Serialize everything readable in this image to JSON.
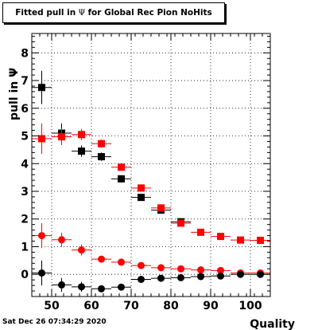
{
  "title": {
    "prefix": "Fitted pull in",
    "symbol": "Ψ",
    "suffix": "for Global Rec Pion NoHits"
  },
  "footer": {
    "timestamp": "Sat Dec 26 07:34:29 2020"
  },
  "colors": {
    "series_a": "#000000",
    "series_b": "#ff0000",
    "grid": "#000000"
  },
  "chart_data": {
    "type": "scatter",
    "title": "Fitted pull in Ψ for Global Rec Pion NoHits",
    "xlabel": "Quality",
    "ylabel": "pull in Ψ",
    "xlim": [
      45,
      105
    ],
    "ylim": [
      -0.8,
      8.7
    ],
    "xticks": [
      50,
      60,
      70,
      80,
      90,
      100
    ],
    "xtick_labels": [
      "50",
      "60",
      "70",
      "80",
      "90",
      "100"
    ],
    "yticks": [
      0,
      1,
      2,
      3,
      4,
      5,
      6,
      7,
      8
    ],
    "ytick_labels": [
      "0",
      "1",
      "2",
      "3",
      "4",
      "5",
      "6",
      "7",
      "8"
    ],
    "grid": true,
    "x_bin_half_width": 2.5,
    "series": [
      {
        "marker": "square",
        "color": "#000000",
        "points": [
          {
            "x": 47.5,
            "y": 6.75,
            "yerr": 0.6
          },
          {
            "x": 52.5,
            "y": 5.1,
            "yerr": 0.35
          },
          {
            "x": 57.5,
            "y": 4.45,
            "yerr": 0.2
          },
          {
            "x": 62.5,
            "y": 4.25,
            "yerr": 0.15
          },
          {
            "x": 67.5,
            "y": 3.45,
            "yerr": 0.1
          },
          {
            "x": 72.5,
            "y": 2.78,
            "yerr": 0.08
          },
          {
            "x": 77.5,
            "y": 2.32,
            "yerr": 0.07
          },
          {
            "x": 82.5,
            "y": 1.9,
            "yerr": 0.06
          }
        ]
      },
      {
        "marker": "square",
        "color": "#ff0000",
        "points": [
          {
            "x": 47.5,
            "y": 4.9,
            "yerr": 0.55
          },
          {
            "x": 52.5,
            "y": 4.97,
            "yerr": 0.3
          },
          {
            "x": 57.5,
            "y": 5.05,
            "yerr": 0.2
          },
          {
            "x": 62.5,
            "y": 4.72,
            "yerr": 0.15
          },
          {
            "x": 67.5,
            "y": 3.87,
            "yerr": 0.1
          },
          {
            "x": 72.5,
            "y": 3.12,
            "yerr": 0.08
          },
          {
            "x": 77.5,
            "y": 2.4,
            "yerr": 0.07
          },
          {
            "x": 82.5,
            "y": 1.85,
            "yerr": 0.06
          },
          {
            "x": 87.5,
            "y": 1.52,
            "yerr": 0.05
          },
          {
            "x": 92.5,
            "y": 1.37,
            "yerr": 0.05
          },
          {
            "x": 97.5,
            "y": 1.24,
            "yerr": 0.04
          },
          {
            "x": 102.5,
            "y": 1.23,
            "yerr": 0.04
          }
        ]
      },
      {
        "marker": "circle",
        "color": "#ff0000",
        "points": [
          {
            "x": 47.5,
            "y": 1.4,
            "yerr": 0.45
          },
          {
            "x": 52.5,
            "y": 1.25,
            "yerr": 0.25
          },
          {
            "x": 57.5,
            "y": 0.88,
            "yerr": 0.2
          },
          {
            "x": 62.5,
            "y": 0.55,
            "yerr": 0.12
          },
          {
            "x": 67.5,
            "y": 0.44,
            "yerr": 0.08
          },
          {
            "x": 72.5,
            "y": 0.32,
            "yerr": 0.06
          },
          {
            "x": 77.5,
            "y": 0.24,
            "yerr": 0.05
          },
          {
            "x": 82.5,
            "y": 0.2,
            "yerr": 0.04
          },
          {
            "x": 87.5,
            "y": 0.16,
            "yerr": 0.04
          },
          {
            "x": 92.5,
            "y": 0.14,
            "yerr": 0.03
          },
          {
            "x": 97.5,
            "y": 0.05,
            "yerr": 0.03
          },
          {
            "x": 102.5,
            "y": 0.05,
            "yerr": 0.03
          }
        ]
      },
      {
        "marker": "circle",
        "color": "#000000",
        "points": [
          {
            "x": 47.5,
            "y": 0.05,
            "yerr": 0.45
          },
          {
            "x": 52.5,
            "y": -0.38,
            "yerr": 0.25
          },
          {
            "x": 57.5,
            "y": -0.45,
            "yerr": 0.18
          },
          {
            "x": 62.5,
            "y": -0.52,
            "yerr": 0.12
          },
          {
            "x": 67.5,
            "y": -0.46,
            "yerr": 0.08
          },
          {
            "x": 72.5,
            "y": -0.18,
            "yerr": 0.06
          },
          {
            "x": 77.5,
            "y": -0.14,
            "yerr": 0.05
          },
          {
            "x": 82.5,
            "y": -0.12,
            "yerr": 0.04
          },
          {
            "x": 87.5,
            "y": -0.08,
            "yerr": 0.04
          },
          {
            "x": 92.5,
            "y": -0.06,
            "yerr": 0.03
          },
          {
            "x": 97.5,
            "y": 0.0,
            "yerr": 0.03
          },
          {
            "x": 102.5,
            "y": 0.0,
            "yerr": 0.03
          }
        ]
      }
    ]
  }
}
